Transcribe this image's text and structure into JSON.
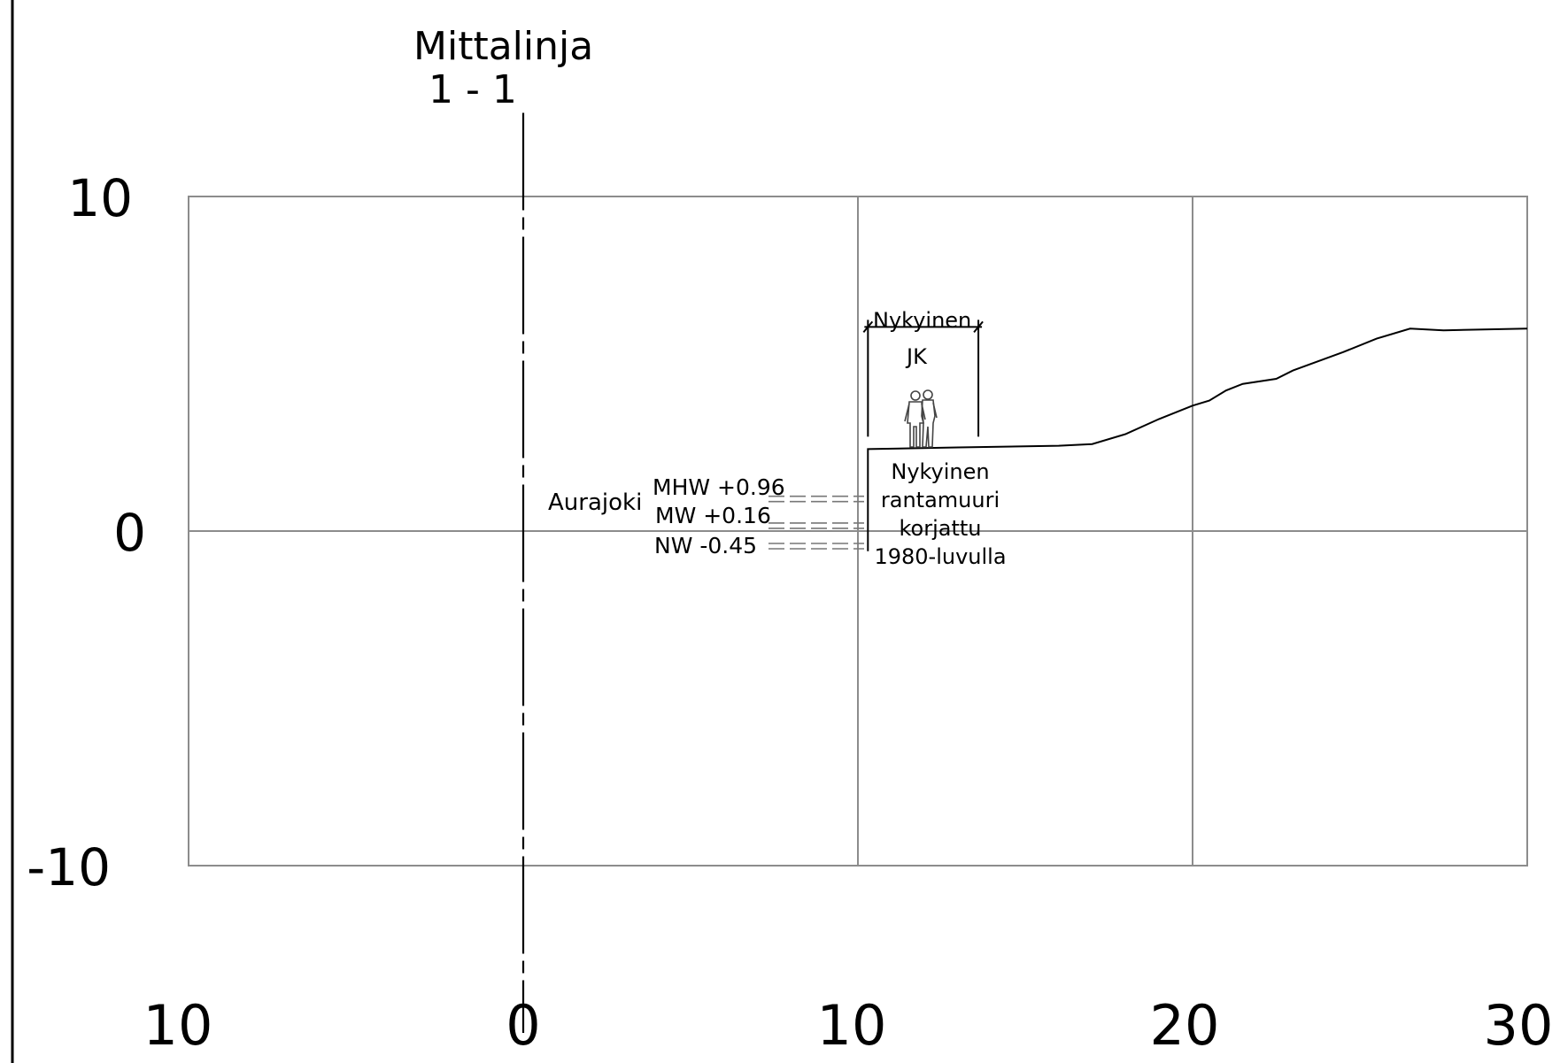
{
  "title": {
    "line1": "Mittalinja",
    "line2": "1 - 1"
  },
  "axes": {
    "x_ticks": [
      "10",
      "0",
      "10",
      "20",
      "30"
    ],
    "y_ticks": [
      "10",
      "0",
      "-10"
    ]
  },
  "section_line": {
    "x": 0,
    "y_top": 12.5,
    "y_bottom": -15
  },
  "river": {
    "label": "Aurajoki"
  },
  "water_levels": [
    {
      "label": "MHW  +0.96",
      "value": 0.96
    },
    {
      "label": "MW  +0.16",
      "value": 0.16
    },
    {
      "label": "NW  -0.45",
      "value": -0.45
    }
  ],
  "walkway": {
    "label_top": "Nykyinen",
    "label_mid": "JK",
    "x_start": 10.3,
    "x_end": 13.6,
    "y_top": 6.1
  },
  "wall": {
    "lines": [
      "Nykyinen",
      "rantamuuri",
      "korjattu",
      "1980-luvulla"
    ]
  },
  "terrain_profile": [
    [
      10.3,
      -0.6
    ],
    [
      10.3,
      2.45
    ],
    [
      13.0,
      2.5
    ],
    [
      16.0,
      2.55
    ],
    [
      17.0,
      2.6
    ],
    [
      18.0,
      2.9
    ],
    [
      19.0,
      3.35
    ],
    [
      20.0,
      3.75
    ],
    [
      20.5,
      3.9
    ],
    [
      21.0,
      4.2
    ],
    [
      21.5,
      4.4
    ],
    [
      22.5,
      4.55
    ],
    [
      23.0,
      4.8
    ],
    [
      24.5,
      5.35
    ],
    [
      25.5,
      5.75
    ],
    [
      26.5,
      6.05
    ],
    [
      27.5,
      6.0
    ],
    [
      30.0,
      6.05
    ]
  ]
}
